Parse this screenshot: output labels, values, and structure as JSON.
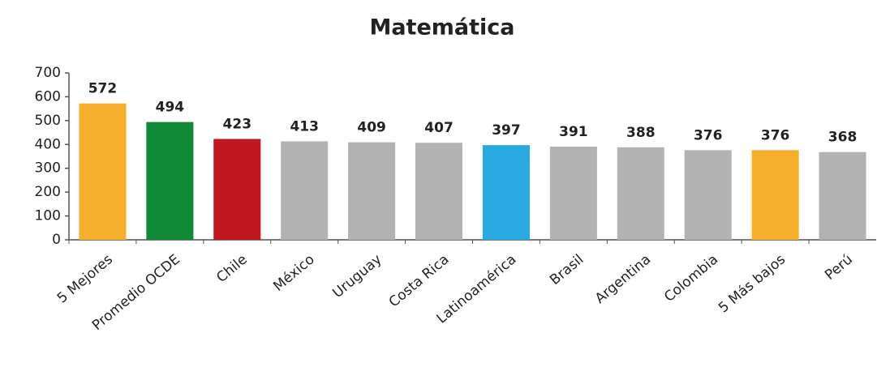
{
  "chart_data": {
    "type": "bar",
    "title": "Matemática",
    "categories": [
      "5 Mejores",
      "Promedio OCDE",
      "Chile",
      "México",
      "Uruguay",
      "Costa Rica",
      "Latinoamérica",
      "Brasil",
      "Argentina",
      "Colombia",
      "5 Más bajos",
      "Perú"
    ],
    "values": [
      572,
      494,
      423,
      413,
      409,
      407,
      397,
      391,
      388,
      376,
      376,
      368
    ],
    "colors": [
      "#f6ae2d",
      "#118a37",
      "#c0161f",
      "#b3b3b3",
      "#b3b3b3",
      "#b3b3b3",
      "#29a9e1",
      "#b3b3b3",
      "#b3b3b3",
      "#b3b3b3",
      "#f6ae2d",
      "#b3b3b3"
    ],
    "ylim": [
      0,
      700
    ],
    "yticks": [
      0,
      100,
      200,
      300,
      400,
      500,
      600,
      700
    ],
    "grid": false
  }
}
